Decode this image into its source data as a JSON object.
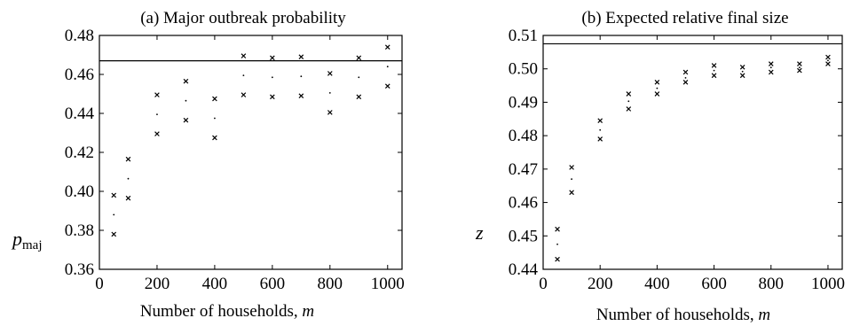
{
  "chart_data": [
    {
      "type": "scatter",
      "title": "(a) Major outbreak probability",
      "xlabel": "Number of households, ",
      "xlabel_var": "m",
      "ylabel": "p",
      "ylabel_sub": "maj",
      "xlim": [
        0,
        1050
      ],
      "ylim": [
        0.36,
        0.48
      ],
      "xticks": [
        "0",
        "200",
        "400",
        "600",
        "800",
        "1000"
      ],
      "yticks": [
        "0.36",
        "0.38",
        "0.40",
        "0.42",
        "0.44",
        "0.46",
        "0.48"
      ],
      "reference_line": 0.467,
      "grid": false,
      "x": [
        50,
        100,
        200,
        300,
        400,
        500,
        600,
        700,
        800,
        900,
        1000
      ],
      "series": [
        {
          "marker": "cross",
          "values": [
            0.398,
            0.4165,
            0.4495,
            0.4565,
            0.4475,
            0.4695,
            0.4685,
            0.469,
            0.4605,
            0.4685,
            0.474
          ]
        },
        {
          "marker": "dot",
          "values": [
            0.388,
            0.4065,
            0.4395,
            0.4465,
            0.4375,
            0.4595,
            0.4585,
            0.459,
            0.4505,
            0.4585,
            0.464
          ]
        },
        {
          "marker": "cross",
          "values": [
            0.378,
            0.3965,
            0.4295,
            0.4365,
            0.4275,
            0.4495,
            0.4485,
            0.449,
            0.4405,
            0.4485,
            0.454
          ]
        }
      ]
    },
    {
      "type": "scatter",
      "title": "(b) Expected relative final size",
      "xlabel": "Number of households, ",
      "xlabel_var": "m",
      "ylabel": "z",
      "xlim": [
        0,
        1050
      ],
      "ylim": [
        0.44,
        0.51
      ],
      "xticks": [
        "0",
        "200",
        "400",
        "600",
        "800",
        "1000"
      ],
      "yticks": [
        "0.44",
        "0.45",
        "0.46",
        "0.47",
        "0.48",
        "0.49",
        "0.50",
        "0.51"
      ],
      "reference_line": 0.5075,
      "grid": false,
      "x": [
        50,
        100,
        200,
        300,
        400,
        500,
        600,
        700,
        800,
        900,
        1000
      ],
      "series": [
        {
          "marker": "cross",
          "values": [
            0.452,
            0.4705,
            0.4845,
            0.4925,
            0.496,
            0.499,
            0.501,
            0.5005,
            0.5015,
            0.5015,
            0.5035
          ]
        },
        {
          "marker": "dot",
          "values": [
            0.4475,
            0.467,
            0.4817,
            0.4903,
            0.4942,
            0.4973,
            0.4995,
            0.4992,
            0.5004,
            0.5004,
            0.5025
          ]
        },
        {
          "marker": "cross",
          "values": [
            0.443,
            0.463,
            0.479,
            0.488,
            0.4925,
            0.496,
            0.498,
            0.498,
            0.499,
            0.4995,
            0.5015
          ]
        }
      ]
    }
  ]
}
